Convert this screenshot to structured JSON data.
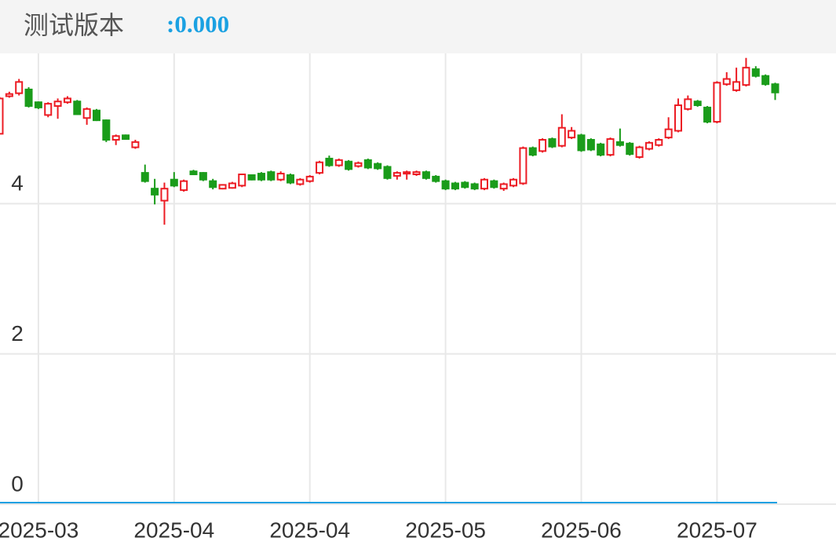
{
  "chart_data": {
    "type": "candlestick",
    "title": "测试版本",
    "annotation": ":0.000",
    "categories": [
      null,
      null,
      null,
      null,
      "2025-03",
      null,
      null,
      null,
      null,
      null,
      null,
      null,
      null,
      null,
      null,
      null,
      null,
      null,
      "2025-04",
      null,
      null,
      null,
      null,
      null,
      null,
      null,
      null,
      null,
      null,
      null,
      null,
      null,
      "2025-04",
      null,
      null,
      null,
      null,
      null,
      null,
      null,
      null,
      null,
      null,
      null,
      null,
      null,
      "2025-05",
      null,
      null,
      null,
      null,
      null,
      null,
      null,
      null,
      null,
      null,
      null,
      null,
      null,
      "2025-06",
      null,
      null,
      null,
      null,
      null,
      null,
      null,
      null,
      null,
      null,
      null,
      null,
      null,
      "2025-07",
      null,
      null,
      null,
      null,
      null,
      null
    ],
    "open": [
      4.93,
      5.43,
      5.47,
      5.52,
      5.35,
      5.18,
      5.3,
      5.35,
      5.36,
      5.14,
      5.24,
      5.11,
      4.85,
      4.91,
      4.75,
      4.41,
      4.2,
      4.04,
      4.32,
      4.18,
      4.43,
      4.41,
      4.3,
      4.2,
      4.21,
      4.24,
      4.38,
      4.4,
      4.42,
      4.32,
      4.38,
      4.26,
      4.3,
      4.41,
      4.6,
      4.51,
      4.56,
      4.5,
      4.58,
      4.53,
      4.49,
      4.37,
      4.4,
      4.39,
      4.42,
      4.36,
      4.3,
      4.27,
      4.28,
      4.26,
      4.2,
      4.3,
      4.2,
      4.24,
      4.27,
      4.74,
      4.7,
      4.86,
      4.77,
      4.88,
      4.91,
      4.85,
      4.79,
      4.65,
      4.82,
      4.8,
      4.62,
      4.73,
      4.78,
      4.88,
      4.97,
      5.26,
      5.36,
      5.28,
      5.09,
      5.59,
      5.51,
      5.58,
      5.79,
      5.7,
      5.59
    ],
    "high": [
      5.42,
      5.49,
      5.66,
      5.55,
      5.36,
      5.35,
      5.4,
      5.43,
      5.38,
      5.28,
      5.26,
      5.12,
      4.92,
      4.92,
      4.85,
      4.52,
      4.33,
      4.28,
      4.42,
      4.32,
      4.45,
      4.42,
      4.33,
      4.26,
      4.29,
      4.4,
      4.39,
      4.42,
      4.44,
      4.43,
      4.4,
      4.34,
      4.38,
      4.57,
      4.64,
      4.6,
      4.58,
      4.56,
      4.6,
      4.55,
      4.51,
      4.43,
      4.44,
      4.44,
      4.44,
      4.38,
      4.32,
      4.29,
      4.3,
      4.28,
      4.34,
      4.32,
      4.28,
      4.34,
      4.76,
      4.76,
      4.87,
      4.88,
      5.19,
      5.02,
      4.93,
      4.87,
      4.81,
      4.88,
      5.0,
      4.82,
      4.77,
      4.83,
      4.87,
      5.15,
      5.4,
      5.44,
      5.38,
      5.3,
      5.63,
      5.75,
      5.81,
      5.94,
      5.83,
      5.72,
      5.61
    ],
    "low": [
      4.93,
      5.41,
      5.44,
      5.28,
      5.26,
      5.15,
      5.13,
      5.33,
      5.18,
      5.05,
      5.1,
      4.82,
      4.78,
      4.85,
      4.73,
      4.28,
      3.99,
      3.72,
      4.22,
      4.16,
      4.38,
      4.3,
      4.19,
      4.19,
      4.2,
      4.22,
      4.31,
      4.3,
      4.3,
      4.3,
      4.26,
      4.24,
      4.28,
      4.39,
      4.49,
      4.49,
      4.44,
      4.48,
      4.46,
      4.45,
      4.32,
      4.32,
      4.32,
      4.37,
      4.32,
      4.28,
      4.18,
      4.18,
      4.2,
      4.18,
      4.18,
      4.2,
      4.17,
      4.22,
      4.25,
      4.63,
      4.68,
      4.74,
      4.75,
      4.86,
      4.69,
      4.7,
      4.63,
      4.63,
      4.76,
      4.64,
      4.6,
      4.71,
      4.76,
      4.86,
      4.95,
      5.24,
      5.29,
      5.07,
      5.07,
      5.57,
      5.49,
      5.56,
      5.68,
      5.57,
      5.38
    ],
    "close": [
      5.4,
      5.46,
      5.62,
      5.3,
      5.28,
      5.33,
      5.36,
      5.4,
      5.19,
      5.26,
      5.11,
      4.85,
      4.9,
      4.86,
      4.82,
      4.3,
      4.12,
      4.2,
      4.24,
      4.3,
      4.39,
      4.32,
      4.22,
      4.25,
      4.27,
      4.39,
      4.32,
      4.32,
      4.32,
      4.4,
      4.28,
      4.32,
      4.36,
      4.55,
      4.51,
      4.58,
      4.46,
      4.54,
      4.48,
      4.47,
      4.34,
      4.41,
      4.42,
      4.42,
      4.34,
      4.3,
      4.2,
      4.2,
      4.22,
      4.2,
      4.32,
      4.22,
      4.26,
      4.32,
      4.74,
      4.65,
      4.85,
      4.76,
      5.01,
      4.97,
      4.71,
      4.72,
      4.65,
      4.86,
      4.78,
      4.66,
      4.75,
      4.81,
      4.85,
      4.99,
      5.31,
      5.39,
      5.31,
      5.09,
      5.61,
      5.66,
      5.62,
      5.81,
      5.7,
      5.59,
      5.48
    ],
    "up_color": "#ec1c24",
    "down_color": "#1a9c1a",
    "ylim": [
      0,
      6
    ],
    "yticks": [
      0,
      2,
      4
    ],
    "grid": true
  }
}
